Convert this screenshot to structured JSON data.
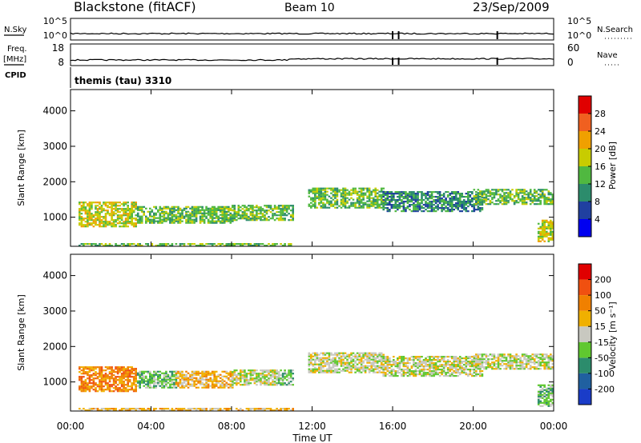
{
  "header": {
    "station": "Blackstone (fitACF)",
    "beam": "Beam 10",
    "date": "23/Sep/2009"
  },
  "chart_data": [
    {
      "type": "line",
      "panel": "noise",
      "left_label": "N.Sky",
      "right_label": "N.Search",
      "left_ticks": [
        "10^5",
        "10^0"
      ],
      "right_ticks": [
        "10^5",
        "10^0"
      ],
      "series": [
        {
          "values_note": "",
          "x": [
            0,
            24
          ],
          "y": [
            1,
            1
          ]
        }
      ],
      "dropouts_hours": [
        16.0,
        16.3,
        21.2
      ]
    },
    {
      "type": "line",
      "panel": "frequency",
      "left_label": "Freq.",
      "left_unit": "[MHz]",
      "right_label": "Nave",
      "left_ticks": [
        "18",
        "8"
      ],
      "right_ticks": [
        "60",
        "0"
      ],
      "dropouts_hours": [
        16.0,
        16.3,
        21.2
      ]
    },
    {
      "type": "table",
      "panel": "cpid",
      "label": "CPID",
      "text": "themis (tau) 3310"
    },
    {
      "type": "heatmap",
      "panel": "power",
      "ylabel": "Slant Range [km]",
      "ylim": [
        180,
        4600
      ],
      "yticks": [
        "4000",
        "3000",
        "2000",
        "1000"
      ],
      "ytick_values": [
        4000,
        3000,
        2000,
        1000
      ],
      "xlim": [
        0,
        24
      ],
      "colorbar": {
        "label": "Power [dB]",
        "ticks": [
          "28",
          "24",
          "20",
          "16",
          "12",
          "8",
          "4"
        ],
        "colors": [
          "#0000f0",
          "#2040a0",
          "#2c8c6c",
          "#50b840",
          "#c8cc00",
          "#f0a000",
          "#f06020",
          "#e00000"
        ]
      },
      "echo_regions": [
        {
          "t0": 0.4,
          "t1": 3.3,
          "r0": 720,
          "r1": 1420,
          "level": 4
        },
        {
          "t0": 3.3,
          "t1": 8.0,
          "r0": 820,
          "r1": 1280,
          "level": 3
        },
        {
          "t0": 8.0,
          "t1": 11.0,
          "r0": 900,
          "r1": 1330,
          "level": 3
        },
        {
          "t0": 11.8,
          "t1": 15.5,
          "r0": 1250,
          "r1": 1800,
          "level": 3
        },
        {
          "t0": 15.5,
          "t1": 20.5,
          "r0": 1150,
          "r1": 1700,
          "level": 2
        },
        {
          "t0": 20.0,
          "t1": 24.0,
          "r0": 1350,
          "r1": 1780,
          "level": 3
        },
        {
          "t0": 0.4,
          "t1": 11.0,
          "r0": 180,
          "r1": 260,
          "level": 3
        },
        {
          "t0": 23.2,
          "t1": 24.0,
          "r0": 300,
          "r1": 900,
          "level": 4
        }
      ]
    },
    {
      "type": "heatmap",
      "panel": "velocity",
      "ylabel": "Slant Range [km]",
      "ylim": [
        180,
        4600
      ],
      "yticks": [
        "4000",
        "3000",
        "2000",
        "1000"
      ],
      "ytick_values": [
        4000,
        3000,
        2000,
        1000
      ],
      "xlim": [
        0,
        24
      ],
      "xlabel": "Time UT",
      "xticks": [
        "00:00",
        "04:00",
        "08:00",
        "12:00",
        "16:00",
        "20:00",
        "00:00"
      ],
      "xtick_values": [
        0,
        4,
        8,
        12,
        16,
        20,
        24
      ],
      "colorbar": {
        "label": "Velocity [m s⁻¹]",
        "ticks": [
          "200",
          "100",
          "50",
          "15",
          "-15",
          "-50",
          "-100",
          "-200"
        ],
        "colors": [
          "#1a3cc8",
          "#2060a0",
          "#2c8c6c",
          "#60c830",
          "#c8c8c0",
          "#f0b000",
          "#f08000",
          "#f05010",
          "#e00000"
        ]
      },
      "echo_regions": [
        {
          "t0": 0.4,
          "t1": 3.3,
          "r0": 720,
          "r1": 1420,
          "level": 6
        },
        {
          "t0": 3.3,
          "t1": 5.2,
          "r0": 820,
          "r1": 1280,
          "level": 3
        },
        {
          "t0": 5.2,
          "t1": 8.0,
          "r0": 820,
          "r1": 1280,
          "level": 5
        },
        {
          "t0": 8.0,
          "t1": 10.2,
          "r0": 900,
          "r1": 1330,
          "level": 4
        },
        {
          "t0": 10.2,
          "t1": 11.0,
          "r0": 900,
          "r1": 1330,
          "level": 3
        },
        {
          "t0": 11.8,
          "t1": 15.5,
          "r0": 1250,
          "r1": 1800,
          "level": 4
        },
        {
          "t0": 15.5,
          "t1": 20.5,
          "r0": 1150,
          "r1": 1700,
          "level": 4
        },
        {
          "t0": 20.0,
          "t1": 24.0,
          "r0": 1350,
          "r1": 1780,
          "level": 4
        },
        {
          "t0": 0.4,
          "t1": 11.0,
          "r0": 180,
          "r1": 260,
          "level": 5
        },
        {
          "t0": 23.2,
          "t1": 24.0,
          "r0": 300,
          "r1": 900,
          "level": 3
        }
      ]
    }
  ]
}
